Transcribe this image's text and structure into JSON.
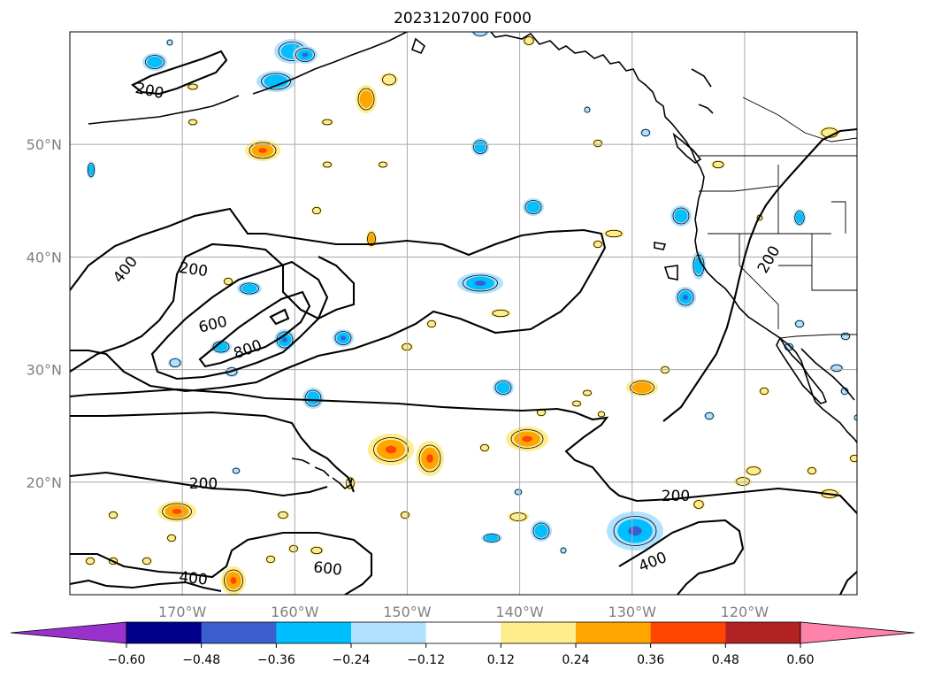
{
  "title": "2023120700 F000",
  "map": {
    "lon_range": [
      -180,
      -110
    ],
    "lat_range": [
      10,
      60
    ],
    "lon_ticks": [
      {
        "value": -170,
        "label": "170°W"
      },
      {
        "value": -160,
        "label": "160°W"
      },
      {
        "value": -150,
        "label": "150°W"
      },
      {
        "value": -140,
        "label": "140°W"
      },
      {
        "value": -130,
        "label": "130°W"
      },
      {
        "value": -120,
        "label": "120°W"
      }
    ],
    "lat_ticks": [
      {
        "value": 50,
        "label": "50°N"
      },
      {
        "value": 40,
        "label": "40°N"
      },
      {
        "value": 30,
        "label": "30°N"
      },
      {
        "value": 20,
        "label": "20°N"
      }
    ],
    "gridlines": true,
    "contour_labels": [
      "200",
      "400",
      "200",
      "600",
      "800",
      "200",
      "200",
      "400",
      "600",
      "200",
      "400"
    ]
  },
  "colorbar": {
    "orientation": "horizontal",
    "extend": "both",
    "boundaries": [
      "−0.60",
      "−0.48",
      "−0.36",
      "−0.24",
      "−0.12",
      "0.12",
      "0.24",
      "0.36",
      "0.48",
      "0.60"
    ],
    "colors": [
      "#9932cc",
      "#00008b",
      "#3a5fcd",
      "#00bfff",
      "#b0e2ff",
      "#ffffff",
      "#ffec8b",
      "#ffa500",
      "#ff4500",
      "#b22222",
      "#ff82ab"
    ]
  }
}
